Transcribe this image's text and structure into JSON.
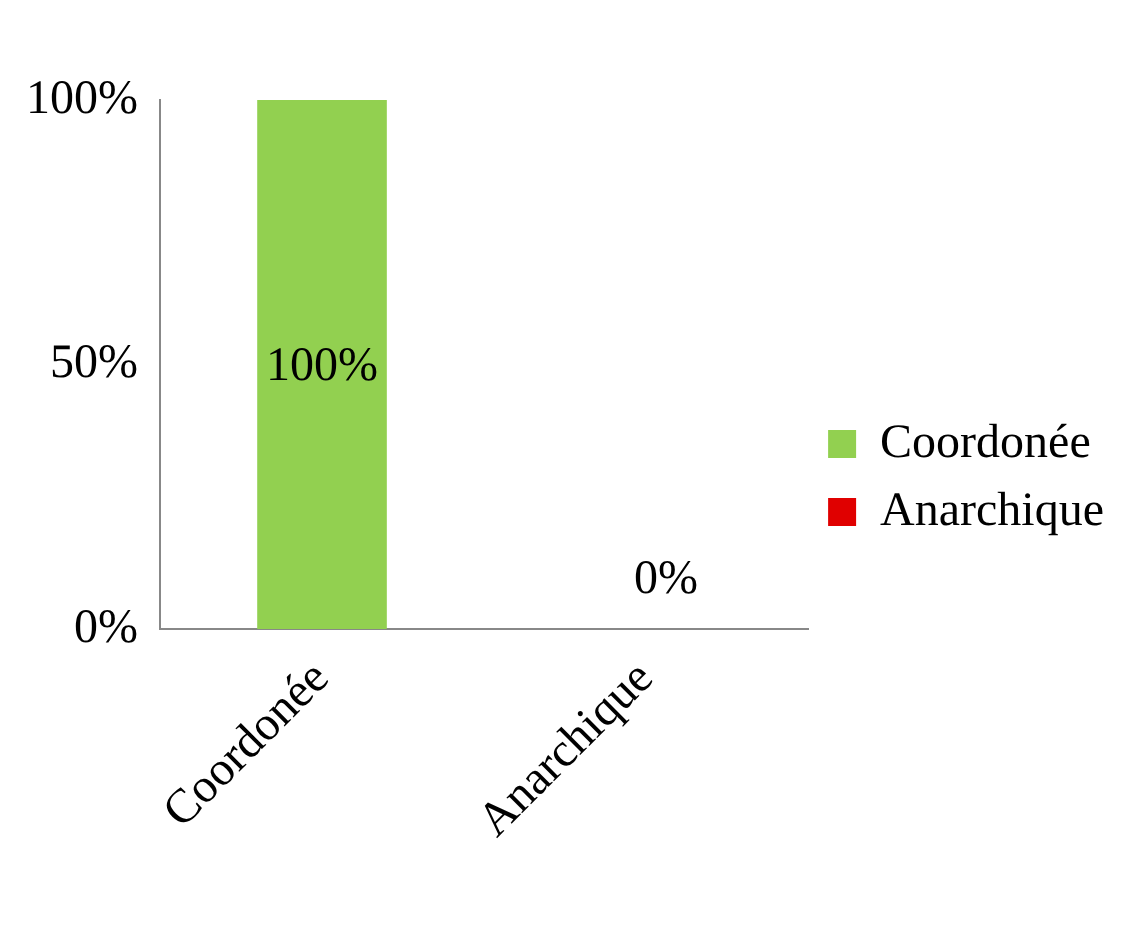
{
  "chart_data": {
    "type": "bar",
    "categories": [
      "Coordonée",
      "Anarchique"
    ],
    "series": [
      {
        "name": "Coordonée",
        "color": "#92d050",
        "values": [
          100,
          null
        ],
        "value_labels": [
          "100%",
          null
        ]
      },
      {
        "name": "Anarchique",
        "color": "#e00000",
        "values": [
          null,
          0
        ],
        "value_labels": [
          null,
          "0%"
        ]
      }
    ],
    "ylim": [
      0,
      100
    ],
    "yticks": [
      {
        "value": 0,
        "label": "0%"
      },
      {
        "value": 50,
        "label": "50%"
      },
      {
        "value": 100,
        "label": "100%"
      }
    ],
    "grid": false,
    "legend": "right"
  }
}
